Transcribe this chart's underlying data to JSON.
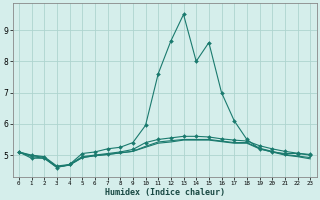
{
  "bg_color": "#d5eeeb",
  "grid_color": "#aed4cf",
  "line_color": "#1a7a6e",
  "x_labels": [
    0,
    1,
    2,
    3,
    4,
    5,
    6,
    7,
    8,
    9,
    10,
    11,
    12,
    13,
    14,
    15,
    16,
    17,
    18,
    19,
    20,
    21,
    22,
    23
  ],
  "xlabel": "Humidex (Indice chaleur)",
  "xlim": [
    -0.5,
    23.5
  ],
  "ylim": [
    4.3,
    9.85
  ],
  "yticks": [
    5,
    6,
    7,
    8,
    9
  ],
  "s1": [
    5.1,
    4.9,
    4.9,
    4.6,
    4.7,
    5.05,
    5.1,
    5.2,
    5.25,
    5.4,
    5.95,
    7.6,
    8.65,
    9.5,
    8.0,
    8.6,
    7.0,
    6.1,
    5.5,
    5.2,
    5.1,
    5.05,
    5.05,
    5.0
  ],
  "s2": [
    5.1,
    5.0,
    4.95,
    4.65,
    4.7,
    4.95,
    5.0,
    5.05,
    5.1,
    5.18,
    5.4,
    5.5,
    5.55,
    5.6,
    5.6,
    5.58,
    5.52,
    5.48,
    5.45,
    5.3,
    5.2,
    5.12,
    5.06,
    5.02
  ],
  "s3": [
    5.1,
    4.98,
    4.93,
    4.62,
    4.68,
    4.92,
    4.98,
    5.02,
    5.07,
    5.12,
    5.28,
    5.42,
    5.46,
    5.5,
    5.5,
    5.5,
    5.45,
    5.4,
    5.4,
    5.22,
    5.12,
    5.02,
    4.97,
    4.92
  ],
  "s4": [
    5.1,
    4.95,
    4.9,
    4.62,
    4.68,
    4.92,
    4.98,
    5.02,
    5.07,
    5.12,
    5.25,
    5.38,
    5.42,
    5.48,
    5.48,
    5.48,
    5.43,
    5.38,
    5.38,
    5.2,
    5.1,
    5.0,
    4.95,
    4.88
  ]
}
